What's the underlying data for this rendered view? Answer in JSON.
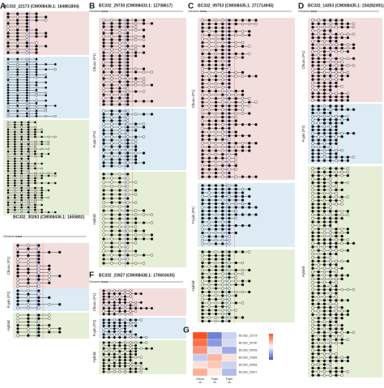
{
  "panels": [
    {
      "letter": "A",
      "title": "BC332_22173  (CM008436.1: 164861804)",
      "groups": []
    },
    {
      "letter": "B",
      "title": "BC332_29730  (CM008433.1: 12708617)",
      "locus": "Genomic locus",
      "groups": [
        "Chuxu (P1)",
        "Fuyin (P2)",
        "Hybrid"
      ]
    },
    {
      "letter": "C",
      "title": "BC332_09753  (CM008435.1: 271714945)",
      "locus": "Genomic locus",
      "groups": [
        "Chuxu (P1)",
        "Fuyin (P2)",
        "Hybrid"
      ]
    },
    {
      "letter": "D",
      "title": "BC332_14353  (CM008435.1: 234282491)",
      "locus": "Genomic locus",
      "groups": [
        "Chuxu (P1)",
        "Fuyin (P2)",
        "Hybrid"
      ]
    },
    {
      "title": "BC332_30263  (CM008436.1: 1655802)",
      "locus": "Genomic locus",
      "groups": [
        "Chuxu (P1)",
        "Fuyin (P2)",
        "Hybrid"
      ]
    },
    {
      "letter": "F",
      "title": "BC332_23927  (CM008438.1: 170603435)",
      "locus": "Genomic locus",
      "groups": [
        "Chuxu (P1)",
        "Fuyin (P2)",
        "Hybrid"
      ]
    }
  ],
  "heatmap": {
    "letter": "G",
    "rows": [
      "BC332_22173",
      "BC332_29730",
      "BC332_09753",
      "BC332_14353",
      "BC332_30263",
      "BC332_23927"
    ],
    "columns": [
      "Chuxu vs Hybrid",
      "Fuyin vs Hybrid",
      "Fuyin vs Chuxu"
    ],
    "values": [
      [
        2,
        -1.5,
        -0.5
      ],
      [
        1.6,
        -1.2,
        -0.4
      ],
      [
        1.2,
        -0.3,
        -1.0
      ],
      [
        -0.6,
        0.8,
        0.3
      ],
      [
        0.3,
        0.6,
        -0.5
      ],
      [
        0.9,
        0.2,
        -0.8
      ]
    ],
    "color_lim": [
      -2,
      2
    ]
  }
}
